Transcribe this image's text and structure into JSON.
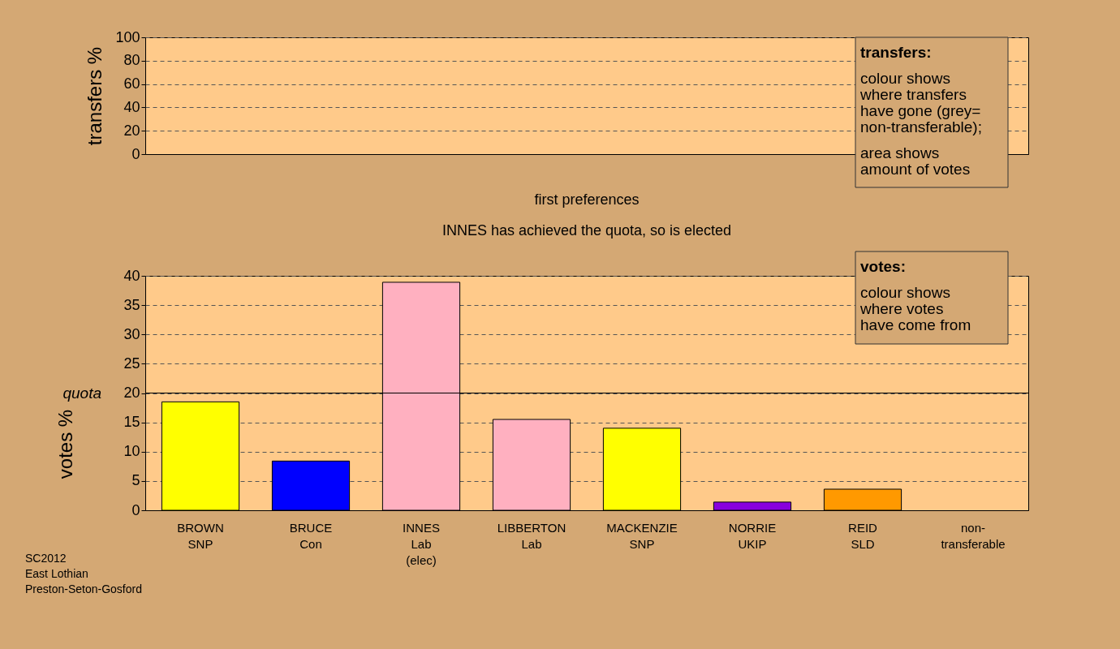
{
  "chart_data": [
    {
      "type": "bar",
      "ylabel": "transfers %",
      "categories": [
        null,
        null,
        null,
        null,
        null,
        null,
        null,
        null
      ],
      "values": [
        null,
        null,
        null,
        null,
        null,
        null,
        null,
        null
      ],
      "ylim": [
        0,
        100
      ],
      "yticks": [
        0,
        20,
        40,
        60,
        80,
        100
      ],
      "grid": "y",
      "tick_labels": "y",
      "annotations": [
        "transfers:",
        "colour shows\nwhere transfers\nhave gone (grey=\nnon-transferable);",
        "area shows\namount of votes"
      ]
    },
    {
      "type": "bar",
      "title": "first preferences",
      "subtitle": "INNES has achieved the quota, so is elected",
      "ylabel": "votes %",
      "categories": [
        "BROWN\nSNP",
        "BRUCE\nCon",
        "INNES\nLab\n(elec)",
        "LIBBERTON\nLab",
        "MACKENZIE\nSNP",
        "NORRIE\nUKIP",
        "REID\nSLD",
        "non-\ntransferable"
      ],
      "values": [
        18.5,
        8.4,
        38.9,
        15.5,
        14.0,
        1.4,
        3.6,
        null
      ],
      "colors": [
        "#ffff00",
        "#0000ff",
        "#ffb0c0",
        "#ffb0c0",
        "#ffff00",
        "#8800dd",
        "#ff9900",
        null
      ],
      "ylim": [
        0,
        40
      ],
      "yticks": [
        0,
        5,
        10,
        15,
        20,
        25,
        30,
        35,
        40
      ],
      "grid": "y",
      "ref_lines": [
        {
          "axis": "y",
          "value": 20,
          "label": "quota"
        }
      ],
      "annotations": [
        "votes:",
        "colour shows\nwhere votes\nhave come from",
        "SC2012\nEast Lothian\nPreston-Seton-Gosford"
      ]
    }
  ]
}
